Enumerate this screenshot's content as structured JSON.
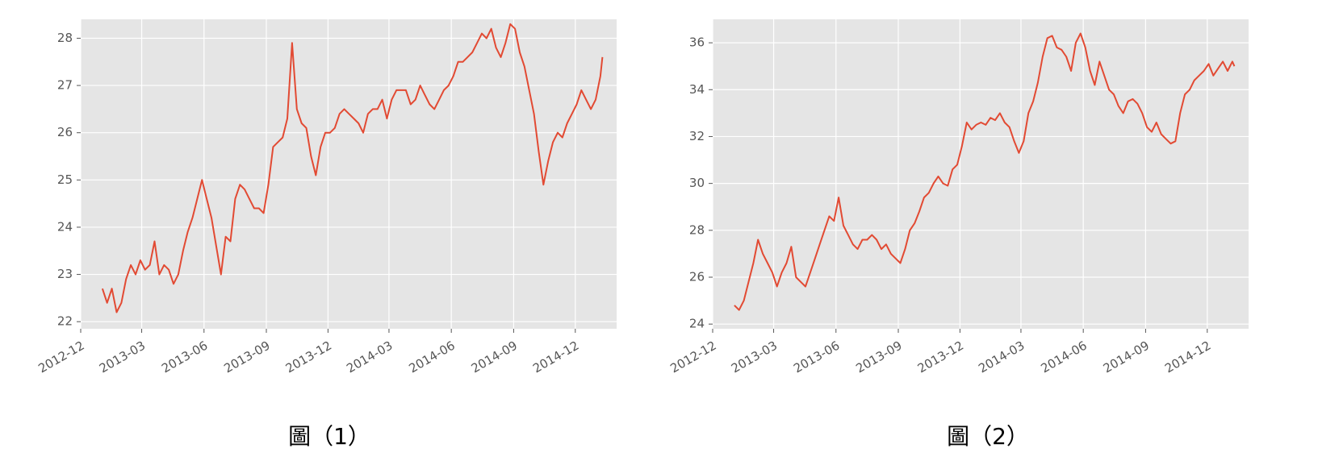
{
  "chart_data": [
    {
      "type": "line",
      "caption": "圖（1）",
      "x_ticks": [
        "2012-12",
        "2013-03",
        "2013-06",
        "2013-09",
        "2013-12",
        "2014-03",
        "2014-06",
        "2014-09",
        "2014-12"
      ],
      "y_ticks": [
        22,
        23,
        24,
        25,
        26,
        27,
        28
      ],
      "xlim": [
        "2012-12-01",
        "2015-01-31"
      ],
      "ylim": [
        21.85,
        28.4
      ],
      "grid": true,
      "style": "ggplot",
      "line_color": "#E24A33",
      "background_color": "#E5E5E5",
      "series": [
        {
          "x": [
            "2013-01-02",
            "2013-01-09",
            "2013-01-16",
            "2013-01-23",
            "2013-01-30",
            "2013-02-06",
            "2013-02-13",
            "2013-02-20",
            "2013-02-27",
            "2013-03-06",
            "2013-03-13",
            "2013-03-20",
            "2013-03-27",
            "2013-04-03",
            "2013-04-10",
            "2013-04-17",
            "2013-04-24",
            "2013-05-01",
            "2013-05-08",
            "2013-05-15",
            "2013-05-22",
            "2013-05-29",
            "2013-06-05",
            "2013-06-12",
            "2013-06-19",
            "2013-06-26",
            "2013-07-03",
            "2013-07-10",
            "2013-07-17",
            "2013-07-24",
            "2013-07-31",
            "2013-08-07",
            "2013-08-14",
            "2013-08-21",
            "2013-08-28",
            "2013-09-04",
            "2013-09-11",
            "2013-09-18",
            "2013-09-25",
            "2013-10-02",
            "2013-10-09",
            "2013-10-16",
            "2013-10-23",
            "2013-10-30",
            "2013-11-06",
            "2013-11-13",
            "2013-11-20",
            "2013-11-27",
            "2013-12-04",
            "2013-12-11",
            "2013-12-18",
            "2013-12-25",
            "2014-01-01",
            "2014-01-08",
            "2014-01-15",
            "2014-01-22",
            "2014-01-29",
            "2014-02-05",
            "2014-02-12",
            "2014-02-19",
            "2014-02-26",
            "2014-03-05",
            "2014-03-12",
            "2014-03-19",
            "2014-03-26",
            "2014-04-02",
            "2014-04-09",
            "2014-04-16",
            "2014-04-23",
            "2014-04-30",
            "2014-05-07",
            "2014-05-14",
            "2014-05-21",
            "2014-05-28",
            "2014-06-04",
            "2014-06-11",
            "2014-06-18",
            "2014-06-25",
            "2014-07-02",
            "2014-07-09",
            "2014-07-16",
            "2014-07-23",
            "2014-07-30",
            "2014-08-06",
            "2014-08-13",
            "2014-08-20",
            "2014-08-27",
            "2014-09-03",
            "2014-09-10",
            "2014-09-17",
            "2014-09-24",
            "2014-10-01",
            "2014-10-08",
            "2014-10-15",
            "2014-10-22",
            "2014-10-29",
            "2014-11-05",
            "2014-11-12",
            "2014-11-19",
            "2014-11-26",
            "2014-12-03",
            "2014-12-10",
            "2014-12-17",
            "2014-12-24",
            "2014-12-31",
            "2015-01-07",
            "2015-01-10"
          ],
          "y": [
            22.7,
            22.4,
            22.7,
            22.2,
            22.4,
            22.9,
            23.2,
            23.0,
            23.3,
            23.1,
            23.2,
            23.7,
            23.0,
            23.2,
            23.1,
            22.8,
            23.0,
            23.5,
            23.9,
            24.2,
            24.6,
            25.0,
            24.6,
            24.2,
            23.6,
            23.0,
            23.8,
            23.7,
            24.6,
            24.9,
            24.8,
            24.6,
            24.4,
            24.4,
            24.3,
            24.9,
            25.7,
            25.8,
            25.9,
            26.3,
            27.9,
            26.5,
            26.2,
            26.1,
            25.5,
            25.1,
            25.7,
            26.0,
            26.0,
            26.1,
            26.4,
            26.5,
            26.4,
            26.3,
            26.2,
            26.0,
            26.4,
            26.5,
            26.5,
            26.7,
            26.3,
            26.7,
            26.9,
            26.9,
            26.9,
            26.6,
            26.7,
            27.0,
            26.8,
            26.6,
            26.5,
            26.7,
            26.9,
            27.0,
            27.2,
            27.5,
            27.5,
            27.6,
            27.7,
            27.9,
            28.1,
            28.0,
            28.2,
            27.8,
            27.6,
            27.9,
            28.3,
            28.2,
            27.7,
            27.4,
            26.9,
            26.4,
            25.6,
            24.9,
            25.4,
            25.8,
            26.0,
            25.9,
            26.2,
            26.4,
            26.6,
            26.9,
            26.7,
            26.5,
            26.7,
            27.2,
            27.6
          ]
        }
      ]
    },
    {
      "type": "line",
      "caption": "圖（2）",
      "x_ticks": [
        "2012-12",
        "2013-03",
        "2013-06",
        "2013-09",
        "2013-12",
        "2014-03",
        "2014-06",
        "2014-09",
        "2014-12"
      ],
      "y_ticks": [
        24,
        26,
        28,
        30,
        32,
        34,
        36
      ],
      "xlim": [
        "2012-12-01",
        "2015-01-31"
      ],
      "ylim": [
        23.8,
        37.0
      ],
      "grid": true,
      "style": "ggplot",
      "line_color": "#E24A33",
      "background_color": "#E5E5E5",
      "series": [
        {
          "x": [
            "2013-01-02",
            "2013-01-09",
            "2013-01-16",
            "2013-01-23",
            "2013-01-30",
            "2013-02-06",
            "2013-02-13",
            "2013-02-20",
            "2013-02-27",
            "2013-03-06",
            "2013-03-13",
            "2013-03-20",
            "2013-03-27",
            "2013-04-03",
            "2013-04-10",
            "2013-04-17",
            "2013-04-24",
            "2013-05-01",
            "2013-05-08",
            "2013-05-15",
            "2013-05-22",
            "2013-05-29",
            "2013-06-05",
            "2013-06-12",
            "2013-06-19",
            "2013-06-26",
            "2013-07-03",
            "2013-07-10",
            "2013-07-17",
            "2013-07-24",
            "2013-07-31",
            "2013-08-07",
            "2013-08-14",
            "2013-08-21",
            "2013-08-28",
            "2013-09-04",
            "2013-09-11",
            "2013-09-18",
            "2013-09-25",
            "2013-10-02",
            "2013-10-09",
            "2013-10-16",
            "2013-10-23",
            "2013-10-30",
            "2013-11-06",
            "2013-11-13",
            "2013-11-20",
            "2013-11-27",
            "2013-12-04",
            "2013-12-11",
            "2013-12-18",
            "2013-12-25",
            "2014-01-01",
            "2014-01-08",
            "2014-01-15",
            "2014-01-22",
            "2014-01-29",
            "2014-02-05",
            "2014-02-12",
            "2014-02-19",
            "2014-02-26",
            "2014-03-05",
            "2014-03-12",
            "2014-03-19",
            "2014-03-26",
            "2014-04-02",
            "2014-04-09",
            "2014-04-16",
            "2014-04-23",
            "2014-04-30",
            "2014-05-07",
            "2014-05-14",
            "2014-05-21",
            "2014-05-28",
            "2014-06-04",
            "2014-06-11",
            "2014-06-18",
            "2014-06-25",
            "2014-07-02",
            "2014-07-09",
            "2014-07-16",
            "2014-07-23",
            "2014-07-30",
            "2014-08-06",
            "2014-08-13",
            "2014-08-20",
            "2014-08-27",
            "2014-09-03",
            "2014-09-10",
            "2014-09-17",
            "2014-09-24",
            "2014-10-01",
            "2014-10-08",
            "2014-10-15",
            "2014-10-22",
            "2014-10-29",
            "2014-11-05",
            "2014-11-12",
            "2014-11-19",
            "2014-11-26",
            "2014-12-03",
            "2014-12-10",
            "2014-12-17",
            "2014-12-24",
            "2014-12-31",
            "2015-01-07",
            "2015-01-10"
          ],
          "y": [
            24.8,
            24.6,
            25.0,
            25.8,
            26.6,
            27.6,
            27.0,
            26.6,
            26.2,
            25.6,
            26.2,
            26.6,
            27.3,
            26.0,
            25.8,
            25.6,
            26.2,
            26.8,
            27.4,
            28.0,
            28.6,
            28.4,
            29.4,
            28.2,
            27.8,
            27.4,
            27.2,
            27.6,
            27.6,
            27.8,
            27.6,
            27.2,
            27.4,
            27.0,
            26.8,
            26.6,
            27.2,
            28.0,
            28.3,
            28.8,
            29.4,
            29.6,
            30.0,
            30.3,
            30.0,
            29.9,
            30.6,
            30.8,
            31.6,
            32.6,
            32.3,
            32.5,
            32.6,
            32.5,
            32.8,
            32.7,
            33.0,
            32.6,
            32.4,
            31.8,
            31.3,
            31.8,
            33.0,
            33.5,
            34.3,
            35.4,
            36.2,
            36.3,
            35.8,
            35.7,
            35.4,
            34.8,
            36.0,
            36.4,
            35.8,
            34.8,
            34.2,
            35.2,
            34.6,
            34.0,
            33.8,
            33.3,
            33.0,
            33.5,
            33.6,
            33.4,
            33.0,
            32.4,
            32.2,
            32.6,
            32.1,
            31.9,
            31.7,
            31.8,
            33.0,
            33.8,
            34.0,
            34.4,
            34.6,
            34.8,
            35.1,
            34.6,
            34.9,
            35.2,
            34.8,
            35.2,
            35.0
          ]
        }
      ]
    }
  ]
}
